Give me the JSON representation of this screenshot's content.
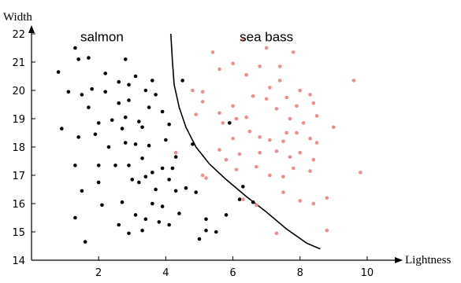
{
  "chart_data": {
    "type": "scatter",
    "xlabel": "Lightness",
    "ylabel": "Width",
    "xlim": [
      0,
      10.8
    ],
    "ylim": [
      14,
      22
    ],
    "xticks": [
      2,
      4,
      6,
      8,
      10
    ],
    "yticks": [
      14,
      15,
      16,
      17,
      18,
      19,
      20,
      21,
      22
    ],
    "grid": false,
    "legend": "none",
    "colors": {
      "salmon": "#000000",
      "sea_bass": "#f08c8c",
      "axes": "#000000"
    },
    "annotations": [
      {
        "text": "salmon",
        "x": 2.1,
        "y": 21.9
      },
      {
        "text": "sea bass",
        "x": 7.0,
        "y": 21.9
      }
    ],
    "series": [
      {
        "values": [
          [
            1.3,
            21.5
          ],
          [
            1.4,
            21.1
          ],
          [
            1.7,
            21.15
          ],
          [
            0.8,
            20.65
          ],
          [
            1.1,
            19.95
          ],
          [
            1.5,
            19.85
          ],
          [
            1.7,
            19.4
          ],
          [
            1.8,
            20.05
          ],
          [
            2.2,
            19.95
          ],
          [
            2.2,
            20.6
          ],
          [
            2.6,
            20.3
          ],
          [
            2.8,
            21.1
          ],
          [
            2.9,
            20.2
          ],
          [
            3.1,
            20.5
          ],
          [
            3.6,
            20.35
          ],
          [
            3.4,
            20.0
          ],
          [
            0.9,
            18.65
          ],
          [
            1.4,
            18.35
          ],
          [
            2.0,
            18.85
          ],
          [
            2.4,
            18.95
          ],
          [
            2.8,
            19.05
          ],
          [
            2.7,
            18.65
          ],
          [
            3.2,
            18.9
          ],
          [
            3.3,
            18.7
          ],
          [
            3.5,
            19.4
          ],
          [
            3.9,
            19.25
          ],
          [
            4.1,
            18.8
          ],
          [
            2.8,
            18.15
          ],
          [
            2.3,
            18.0
          ],
          [
            1.9,
            18.45
          ],
          [
            2.6,
            19.55
          ],
          [
            2.9,
            19.65
          ],
          [
            3.7,
            19.85
          ],
          [
            1.3,
            17.35
          ],
          [
            1.5,
            16.45
          ],
          [
            2.0,
            17.35
          ],
          [
            2.0,
            16.75
          ],
          [
            2.5,
            17.35
          ],
          [
            2.9,
            17.35
          ],
          [
            3.0,
            16.85
          ],
          [
            3.2,
            16.75
          ],
          [
            3.4,
            16.95
          ],
          [
            3.6,
            17.1
          ],
          [
            3.9,
            17.25
          ],
          [
            4.1,
            16.85
          ],
          [
            4.2,
            17.25
          ],
          [
            4.3,
            17.65
          ],
          [
            3.1,
            18.1
          ],
          [
            3.5,
            18.05
          ],
          [
            4.0,
            18.25
          ],
          [
            3.3,
            17.6
          ],
          [
            1.3,
            15.5
          ],
          [
            1.6,
            14.65
          ],
          [
            2.1,
            15.95
          ],
          [
            2.6,
            15.25
          ],
          [
            2.9,
            14.95
          ],
          [
            3.1,
            15.6
          ],
          [
            3.4,
            15.45
          ],
          [
            3.8,
            15.35
          ],
          [
            3.7,
            16.5
          ],
          [
            3.9,
            15.9
          ],
          [
            4.3,
            16.45
          ],
          [
            4.4,
            15.65
          ],
          [
            4.6,
            16.55
          ],
          [
            4.9,
            16.4
          ],
          [
            5.2,
            15.45
          ],
          [
            5.5,
            15.0
          ],
          [
            5.8,
            15.6
          ],
          [
            6.2,
            16.15
          ],
          [
            6.3,
            16.6
          ],
          [
            6.6,
            16.05
          ],
          [
            5.2,
            15.05
          ],
          [
            4.5,
            20.35
          ],
          [
            5.9,
            18.85
          ],
          [
            3.6,
            16.0
          ],
          [
            4.1,
            15.25
          ],
          [
            5.0,
            14.75
          ],
          [
            4.8,
            18.1
          ],
          [
            2.7,
            16.05
          ],
          [
            3.3,
            15.05
          ]
        ]
      },
      {
        "values": [
          [
            5.4,
            21.35
          ],
          [
            5.6,
            20.75
          ],
          [
            6.0,
            20.95
          ],
          [
            6.3,
            21.8
          ],
          [
            6.4,
            20.55
          ],
          [
            6.8,
            20.85
          ],
          [
            7.0,
            21.5
          ],
          [
            7.4,
            20.85
          ],
          [
            7.8,
            21.35
          ],
          [
            7.1,
            20.1
          ],
          [
            7.4,
            20.35
          ],
          [
            7.6,
            19.75
          ],
          [
            8.0,
            20.0
          ],
          [
            8.3,
            19.85
          ],
          [
            8.4,
            19.55
          ],
          [
            4.8,
            20.0
          ],
          [
            5.1,
            19.95
          ],
          [
            5.1,
            19.6
          ],
          [
            4.9,
            19.15
          ],
          [
            5.6,
            19.2
          ],
          [
            5.7,
            18.85
          ],
          [
            6.0,
            19.45
          ],
          [
            6.1,
            19.0
          ],
          [
            6.4,
            19.05
          ],
          [
            6.6,
            19.8
          ],
          [
            7.0,
            19.7
          ],
          [
            7.3,
            19.35
          ],
          [
            7.7,
            19.0
          ],
          [
            7.9,
            19.45
          ],
          [
            8.1,
            18.85
          ],
          [
            8.5,
            19.1
          ],
          [
            9.0,
            18.7
          ],
          [
            6.0,
            18.3
          ],
          [
            6.5,
            18.55
          ],
          [
            6.8,
            18.35
          ],
          [
            7.1,
            18.25
          ],
          [
            7.5,
            18.2
          ],
          [
            7.9,
            18.5
          ],
          [
            8.3,
            18.3
          ],
          [
            8.5,
            18.15
          ],
          [
            5.6,
            17.9
          ],
          [
            6.2,
            17.75
          ],
          [
            6.8,
            17.8
          ],
          [
            7.3,
            17.85
          ],
          [
            7.7,
            17.65
          ],
          [
            8.0,
            17.8
          ],
          [
            8.4,
            17.55
          ],
          [
            5.1,
            17.0
          ],
          [
            5.8,
            17.55
          ],
          [
            6.1,
            17.2
          ],
          [
            6.7,
            17.3
          ],
          [
            7.1,
            17.0
          ],
          [
            7.5,
            16.95
          ],
          [
            7.8,
            17.25
          ],
          [
            8.3,
            17.15
          ],
          [
            7.5,
            16.4
          ],
          [
            8.0,
            16.1
          ],
          [
            8.4,
            16.0
          ],
          [
            8.8,
            16.2
          ],
          [
            4.3,
            17.8
          ],
          [
            5.2,
            16.9
          ],
          [
            6.3,
            16.15
          ],
          [
            6.7,
            15.95
          ],
          [
            7.3,
            14.95
          ],
          [
            8.8,
            15.05
          ],
          [
            9.6,
            20.35
          ],
          [
            9.8,
            17.1
          ],
          [
            7.6,
            18.5
          ]
        ]
      }
    ],
    "decision_boundary": [
      [
        4.15,
        22.0
      ],
      [
        4.2,
        21.0
      ],
      [
        4.25,
        20.2
      ],
      [
        4.4,
        19.4
      ],
      [
        4.6,
        18.7
      ],
      [
        4.9,
        18.0
      ],
      [
        5.3,
        17.4
      ],
      [
        5.8,
        16.85
      ],
      [
        6.4,
        16.25
      ],
      [
        7.0,
        15.7
      ],
      [
        7.6,
        15.1
      ],
      [
        8.2,
        14.6
      ],
      [
        8.6,
        14.4
      ]
    ]
  }
}
